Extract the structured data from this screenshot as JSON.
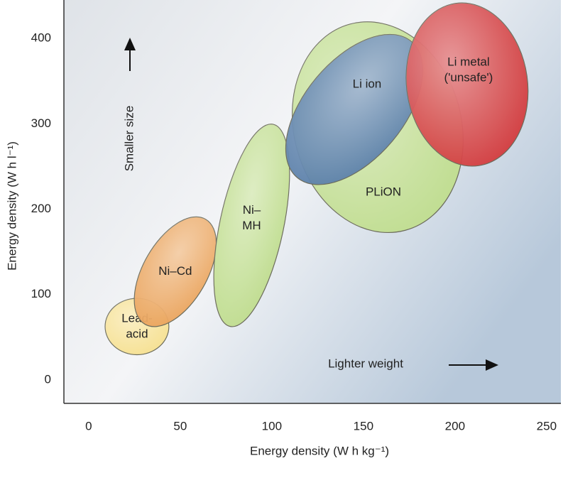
{
  "chart_data": {
    "type": "ellipse",
    "x_label": "Energy density (W h kg⁻¹)",
    "y_label": "Energy density (W h l⁻¹)",
    "xlim": [
      -13.5,
      257.8
    ],
    "ylim": [
      -27.5,
      445
    ],
    "xticks": [
      0,
      50,
      100,
      150,
      200,
      250
    ],
    "yticks": [
      0,
      100,
      200,
      300,
      400
    ],
    "annotations": [
      "Smaller size",
      "Lighter weight"
    ],
    "series": [
      {
        "name": [
          "Lead-",
          "acid"
        ],
        "color": "#f6df8e",
        "cx": 26.4,
        "cy": 62.5,
        "rx": 17.4,
        "ry": 33,
        "angle": 0
      },
      {
        "name": [
          "Ni–Cd"
        ],
        "color": "#eaa35c",
        "cx": 47.3,
        "cy": 126.7,
        "rx": 17.4,
        "ry": 71,
        "angle": 30
      },
      {
        "name": [
          "Ni–",
          "MH"
        ],
        "color": "#bfdc8c",
        "cx": 89,
        "cy": 181,
        "rx": 17.4,
        "ry": 121,
        "angle": 12
      },
      {
        "name": [
          "PLiON"
        ],
        "color": "#bfdc8c",
        "cx": 157.8,
        "cy": 296,
        "rx": 45.7,
        "ry": 125,
        "angle": -15
      },
      {
        "name": [
          "Li ion"
        ],
        "color": "#5b80aa",
        "cx": 145,
        "cy": 316.7,
        "rx": 27,
        "ry": 104,
        "angle": 40
      },
      {
        "name": [
          "Li metal",
          "('unsafe')"
        ],
        "color": "#d2393b",
        "cx": 206.6,
        "cy": 346,
        "rx": 33,
        "ry": 96,
        "angle": -8
      }
    ]
  }
}
